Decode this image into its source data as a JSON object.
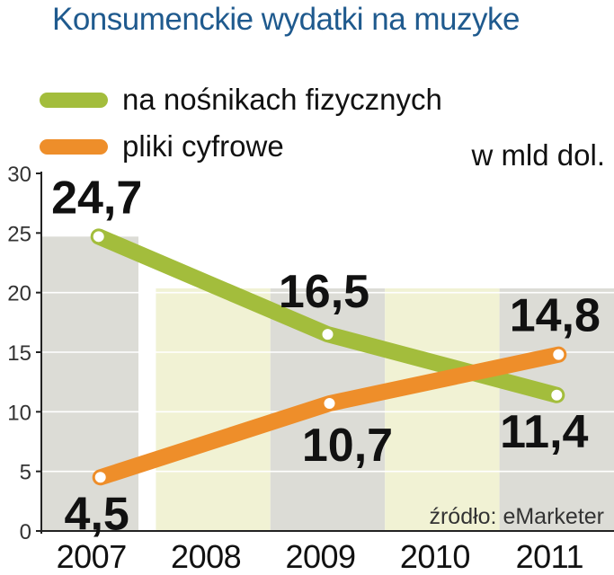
{
  "title": "Konsumenckie wydatki na muzyke",
  "unit": "w mld dol.",
  "colors": {
    "title": "#1f5a8e",
    "physical": "#a3bd3c",
    "digital": "#ee8e2a",
    "band_gray": "#dcdcd6",
    "band_cream": "#f1f2d4",
    "text": "#111111"
  },
  "chart_data": {
    "type": "line",
    "categories": [
      "2007",
      "2008",
      "2009",
      "2010",
      "2011"
    ],
    "ylim": [
      0,
      30
    ],
    "yticks": [
      0,
      5,
      10,
      15,
      20,
      25,
      30
    ],
    "series": [
      {
        "name": "na nośnikach fizycznych",
        "points": [
          [
            "2007",
            24.7
          ],
          [
            "2009",
            16.5
          ],
          [
            "2011",
            11.4
          ]
        ],
        "labels": [
          "24,7",
          "16,5",
          "11,4"
        ]
      },
      {
        "name": "pliki cyfrowe",
        "points": [
          [
            "2007",
            4.5
          ],
          [
            "2009",
            10.7
          ],
          [
            "2011",
            14.8
          ]
        ],
        "labels": [
          "4,5",
          "10,7",
          "14,8"
        ]
      }
    ],
    "legend": "top-left",
    "source": "źródło: eMarketer"
  }
}
